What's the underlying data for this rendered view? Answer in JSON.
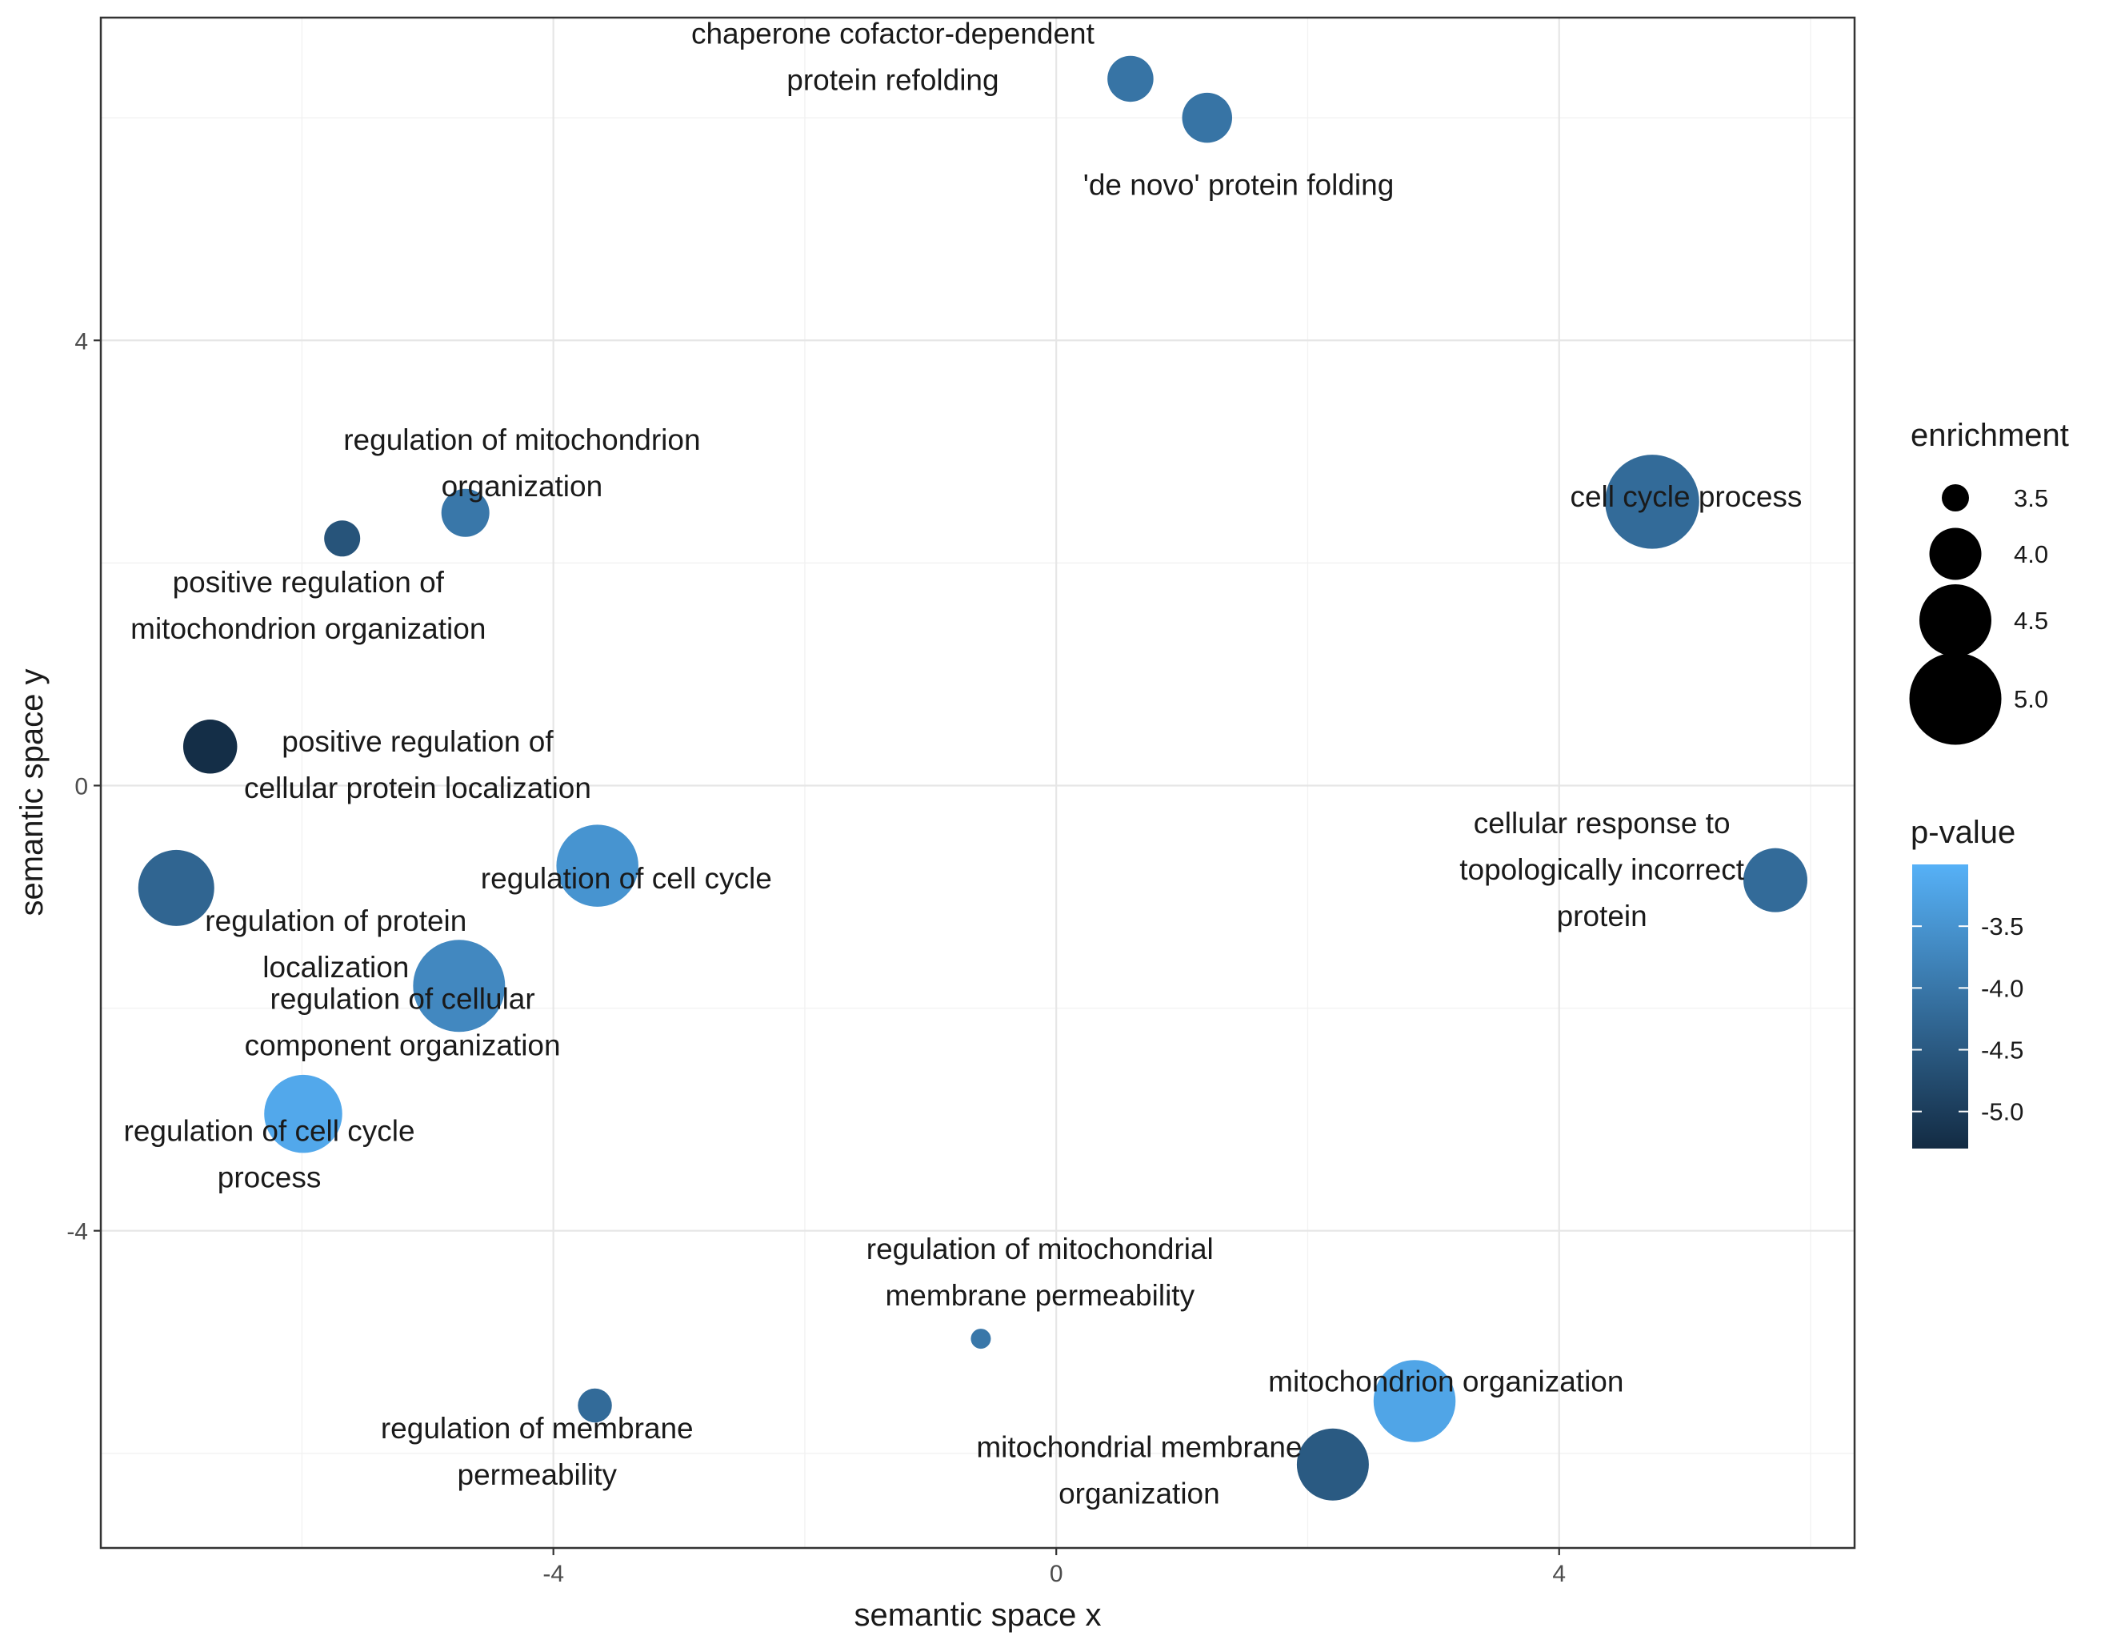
{
  "chart_data": {
    "type": "scatter",
    "xlabel": "semantic space x",
    "ylabel": "semantic space y",
    "xlim": [
      -7.6,
      6.35
    ],
    "ylim": [
      -6.85,
      6.9
    ],
    "x_ticks": [
      -4,
      0,
      4
    ],
    "y_ticks": [
      -4,
      0,
      4
    ],
    "x_tick_labels": [
      "-4",
      "0",
      "4"
    ],
    "y_tick_labels": [
      "-4",
      "0",
      "4"
    ],
    "grid": true,
    "size_legend": {
      "title": "enrichment",
      "values": [
        3.5,
        4.0,
        4.5,
        5.0
      ],
      "labels": [
        "3.5",
        "4.0",
        "4.5",
        "5.0"
      ]
    },
    "color_legend": {
      "title": "p-value",
      "min": -5.3,
      "max": -3.0,
      "low_color": "#132b43",
      "high_color": "#56b1f7",
      "ticks": [
        -3.5,
        -4.0,
        -4.5,
        -5.0
      ],
      "labels": [
        "-3.5",
        "-4.0",
        "-4.5",
        "-5.0"
      ]
    },
    "points": [
      {
        "name": "chaperone cofactor-dependent protein refolding",
        "label_lines": [
          "chaperone cofactor-dependent",
          "protein refolding"
        ],
        "x": 0.59,
        "y": 6.35,
        "enrichment": 3.85,
        "pvalue": -4.05,
        "label_x": -1.3,
        "label_y": 6.55,
        "label_anchor": "middle"
      },
      {
        "name": "'de novo' protein folding",
        "label_lines": [
          "'de novo' protein folding"
        ],
        "x": 1.2,
        "y": 6.0,
        "enrichment": 3.95,
        "pvalue": -4.05,
        "label_x": 1.45,
        "label_y": 5.4,
        "label_anchor": "middle"
      },
      {
        "name": "regulation of mitochondrion organization",
        "label_lines": [
          "regulation of mitochondrion",
          "organization"
        ],
        "x": -4.7,
        "y": 2.45,
        "enrichment": 3.9,
        "pvalue": -4.0,
        "label_x": -4.25,
        "label_y": 2.9,
        "label_anchor": "middle"
      },
      {
        "name": "positive regulation of mitochondrion organization",
        "label_lines": [
          "positive regulation of",
          "mitochondrion organization"
        ],
        "x": -5.68,
        "y": 2.22,
        "enrichment": 3.6,
        "pvalue": -4.6,
        "label_x": -5.95,
        "label_y": 1.62,
        "label_anchor": "middle"
      },
      {
        "name": "cell cycle process",
        "label_lines": [
          "cell cycle process"
        ],
        "x": 4.74,
        "y": 2.55,
        "enrichment": 5.05,
        "pvalue": -4.2,
        "label_x": 5.01,
        "label_y": 2.6,
        "label_anchor": "middle"
      },
      {
        "name": "positive regulation of cellular protein localization",
        "label_lines": [
          "positive regulation of",
          "cellular protein localization"
        ],
        "x": -6.73,
        "y": 0.35,
        "enrichment": 4.05,
        "pvalue": -5.25,
        "label_x": -5.08,
        "label_y": 0.19,
        "label_anchor": "middle"
      },
      {
        "name": "regulation of cell cycle",
        "label_lines": [
          "regulation of cell cycle"
        ],
        "x": -3.65,
        "y": -0.72,
        "enrichment": 4.75,
        "pvalue": -3.5,
        "label_x": -3.42,
        "label_y": -0.83,
        "label_anchor": "middle"
      },
      {
        "name": "cellular response to topologically incorrect protein",
        "label_lines": [
          "cellular response to",
          "topologically incorrect",
          "protein"
        ],
        "x": 5.72,
        "y": -0.85,
        "enrichment": 4.3,
        "pvalue": -4.2,
        "label_x": 4.34,
        "label_y": -0.75,
        "label_anchor": "middle"
      },
      {
        "name": "regulation of protein localization",
        "label_lines": [
          "regulation of protein",
          "localization"
        ],
        "x": -7.0,
        "y": -0.92,
        "enrichment": 4.6,
        "pvalue": -4.3,
        "label_x": -5.73,
        "label_y": -1.42,
        "label_anchor": "middle"
      },
      {
        "name": "regulation of cellular component organization",
        "label_lines": [
          "regulation of cellular",
          "component organization"
        ],
        "x": -4.75,
        "y": -1.8,
        "enrichment": 5.0,
        "pvalue": -3.7,
        "label_x": -5.2,
        "label_y": -2.12,
        "label_anchor": "middle"
      },
      {
        "name": "regulation of cell cycle process",
        "label_lines": [
          "regulation of cell cycle",
          "process"
        ],
        "x": -5.99,
        "y": -2.95,
        "enrichment": 4.65,
        "pvalue": -3.15,
        "label_x": -6.26,
        "label_y": -3.31,
        "label_anchor": "middle"
      },
      {
        "name": "regulation of mitochondrial membrane permeability",
        "label_lines": [
          "regulation of mitochondrial",
          "membrane permeability"
        ],
        "x": -0.6,
        "y": -4.97,
        "enrichment": 3.2,
        "pvalue": -4.0,
        "label_x": -0.13,
        "label_y": -4.37,
        "label_anchor": "middle"
      },
      {
        "name": "regulation of membrane permeability",
        "label_lines": [
          "regulation of membrane",
          "permeability"
        ],
        "x": -3.67,
        "y": -5.57,
        "enrichment": 3.55,
        "pvalue": -4.2,
        "label_x": -4.13,
        "label_y": -5.98,
        "label_anchor": "middle"
      },
      {
        "name": "mitochondrion organization",
        "label_lines": [
          "mitochondrion organization"
        ],
        "x": 2.85,
        "y": -5.53,
        "enrichment": 4.75,
        "pvalue": -3.2,
        "label_x": 3.1,
        "label_y": -5.35,
        "label_anchor": "middle"
      },
      {
        "name": "mitochondrial membrane organization",
        "label_lines": [
          "mitochondrial membrane",
          "organization"
        ],
        "x": 2.2,
        "y": -6.1,
        "enrichment": 4.5,
        "pvalue": -4.5,
        "label_x": 0.66,
        "label_y": -6.15,
        "label_anchor": "middle"
      }
    ]
  }
}
